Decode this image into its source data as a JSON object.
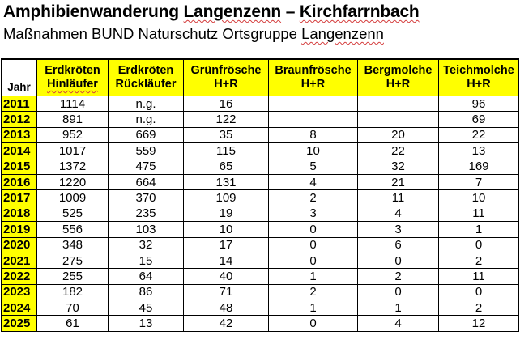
{
  "title": "Amphibienwanderung Langenzenn – Kirchfarrnbach",
  "title_parts": {
    "start": "Amphibienwanderung ",
    "w1": "Langenzenn",
    "mid": " – ",
    "w2": "Kirchfarrnbach"
  },
  "subtitle": "Maßnahmen BUND Naturschutz Ortsgruppe Langenzenn",
  "subtitle_parts": {
    "start": "Maßnahmen BUND Naturschutz Ortsgruppe ",
    "w1": "Langenzenn"
  },
  "colors": {
    "header_highlight": "#ffff00",
    "spellcheck_underline": "#d43c3c"
  },
  "table": {
    "year_header": "Jahr",
    "columns": [
      {
        "line1": "Erdkröten",
        "line2": "Hinläufer"
      },
      {
        "line1": "Erdkröten",
        "line2": "Rückläufer"
      },
      {
        "line1": "Grünfrösche",
        "line2": "H+R"
      },
      {
        "line1": "Braunfrösche",
        "line2": "H+R"
      },
      {
        "line1": "Bergmolche",
        "line2": "H+R"
      },
      {
        "line1": "Teichmolche",
        "line2": "H+R"
      }
    ],
    "rows": [
      {
        "year": "2011",
        "cells": [
          "1114",
          "n.g.",
          "16",
          "",
          "",
          "96"
        ]
      },
      {
        "year": "2012",
        "cells": [
          "891",
          "n.g.",
          "122",
          "",
          "",
          "69"
        ]
      },
      {
        "year": "2013",
        "cells": [
          "952",
          "669",
          "35",
          "8",
          "20",
          "22"
        ]
      },
      {
        "year": "2014",
        "cells": [
          "1017",
          "559",
          "115",
          "10",
          "22",
          "13"
        ]
      },
      {
        "year": "2015",
        "cells": [
          "1372",
          "475",
          "65",
          "5",
          "32",
          "169"
        ]
      },
      {
        "year": "2016",
        "cells": [
          "1220",
          "664",
          "131",
          "4",
          "21",
          "7"
        ]
      },
      {
        "year": "2017",
        "cells": [
          "1009",
          "370",
          "109",
          "2",
          "11",
          "10"
        ]
      },
      {
        "year": "2018",
        "cells": [
          "525",
          "235",
          "19",
          "3",
          "4",
          "11"
        ]
      },
      {
        "year": "2019",
        "cells": [
          "556",
          "103",
          "10",
          "0",
          "3",
          "1"
        ]
      },
      {
        "year": "2020",
        "cells": [
          "348",
          "32",
          "17",
          "0",
          "6",
          "0"
        ]
      },
      {
        "year": "2021",
        "cells": [
          "275",
          "15",
          "14",
          "0",
          "0",
          "2"
        ]
      },
      {
        "year": "2022",
        "cells": [
          "255",
          "64",
          "40",
          "1",
          "2",
          "11"
        ]
      },
      {
        "year": "2023",
        "cells": [
          "182",
          "86",
          "71",
          "2",
          "0",
          "0"
        ]
      },
      {
        "year": "2024",
        "cells": [
          "70",
          "45",
          "48",
          "1",
          "1",
          "2"
        ]
      },
      {
        "year": "2025",
        "cells": [
          "61",
          "13",
          "42",
          "0",
          "4",
          "12"
        ]
      }
    ]
  }
}
